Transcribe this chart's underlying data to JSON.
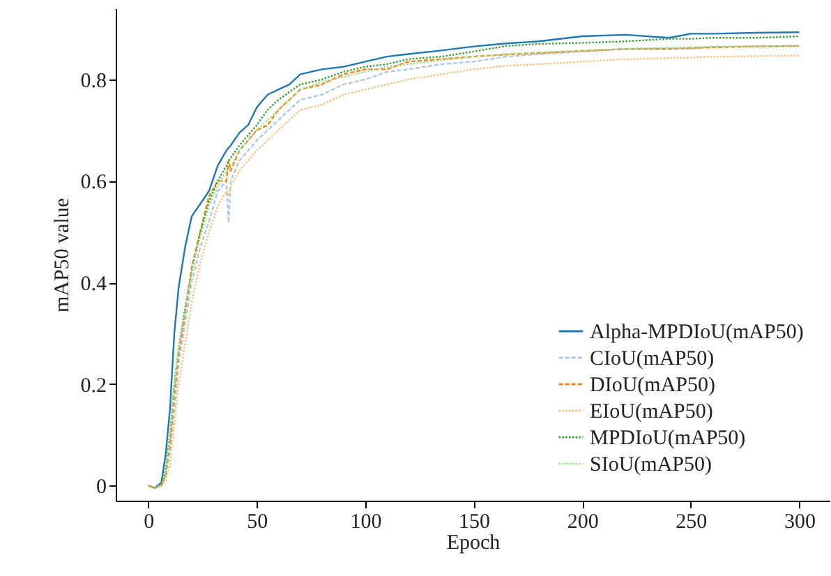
{
  "chart_data": {
    "type": "line",
    "xlabel": "Epoch",
    "ylabel": "mAP50 value",
    "legend": "bottom right",
    "grid": false,
    "xlim": [
      -15,
      314
    ],
    "xticks": [
      0,
      50,
      100,
      150,
      200,
      250,
      300
    ],
    "ylim": [
      -0.03,
      0.94
    ],
    "yticks": [
      0,
      0.2,
      0.4,
      0.6,
      0.8
    ],
    "x": [
      0,
      3,
      6,
      8,
      10,
      12,
      14,
      17,
      20,
      24,
      28,
      32,
      36,
      37,
      38,
      42,
      46,
      50,
      55,
      60,
      65,
      70,
      80,
      90,
      100,
      110,
      120,
      135,
      150,
      165,
      180,
      200,
      220,
      240,
      250,
      260,
      280,
      300
    ],
    "series": [
      {
        "name": "Alpha-MPDIoU(mAP50)",
        "color": "#1f77b4",
        "line_style": "solid",
        "values": [
          0,
          -0.005,
          0.005,
          0.06,
          0.15,
          0.3,
          0.39,
          0.47,
          0.53,
          0.555,
          0.58,
          0.63,
          0.66,
          0.665,
          0.67,
          0.695,
          0.71,
          0.745,
          0.77,
          0.78,
          0.79,
          0.81,
          0.82,
          0.825,
          0.835,
          0.845,
          0.85,
          0.857,
          0.865,
          0.871,
          0.875,
          0.885,
          0.888,
          0.882,
          0.89,
          0.89,
          0.892,
          0.893
        ]
      },
      {
        "name": "CIoU(mAP50)",
        "color": "#aec7e8",
        "line_style": "dashed",
        "values": [
          0,
          -0.005,
          0,
          0.02,
          0.07,
          0.15,
          0.24,
          0.32,
          0.4,
          0.47,
          0.52,
          0.58,
          0.6,
          0.518,
          0.6,
          0.64,
          0.66,
          0.68,
          0.7,
          0.72,
          0.74,
          0.76,
          0.77,
          0.79,
          0.8,
          0.815,
          0.82,
          0.83,
          0.835,
          0.845,
          0.85,
          0.855,
          0.86,
          0.862,
          0.86,
          0.865,
          0.865,
          0.866
        ]
      },
      {
        "name": "DIoU(mAP50)",
        "color": "#ff7f0e",
        "line_style": "dashed",
        "values": [
          0,
          -0.005,
          0,
          0.02,
          0.08,
          0.18,
          0.26,
          0.34,
          0.43,
          0.5,
          0.57,
          0.6,
          0.6,
          0.64,
          0.62,
          0.66,
          0.68,
          0.7,
          0.71,
          0.74,
          0.76,
          0.78,
          0.79,
          0.81,
          0.82,
          0.82,
          0.835,
          0.84,
          0.845,
          0.849,
          0.852,
          0.856,
          0.86,
          0.86,
          0.862,
          0.863,
          0.865,
          0.866
        ]
      },
      {
        "name": "EIoU(mAP50)",
        "color": "#ffbb78",
        "line_style": "dotted",
        "values": [
          0,
          -0.005,
          0,
          0.01,
          0.04,
          0.12,
          0.2,
          0.28,
          0.36,
          0.44,
          0.5,
          0.55,
          0.58,
          0.57,
          0.59,
          0.62,
          0.64,
          0.66,
          0.68,
          0.7,
          0.72,
          0.74,
          0.75,
          0.77,
          0.78,
          0.79,
          0.8,
          0.81,
          0.82,
          0.827,
          0.83,
          0.835,
          0.84,
          0.842,
          0.843,
          0.845,
          0.846,
          0.847
        ]
      },
      {
        "name": "MPDIoU(mAP50)",
        "color": "#2ca02c",
        "line_style": "dotted",
        "values": [
          0,
          -0.005,
          0,
          0.03,
          0.1,
          0.2,
          0.27,
          0.35,
          0.42,
          0.5,
          0.56,
          0.6,
          0.63,
          0.64,
          0.645,
          0.67,
          0.69,
          0.71,
          0.74,
          0.76,
          0.775,
          0.79,
          0.8,
          0.815,
          0.825,
          0.83,
          0.84,
          0.845,
          0.855,
          0.866,
          0.87,
          0.872,
          0.875,
          0.88,
          0.88,
          0.882,
          0.882,
          0.885
        ]
      },
      {
        "name": "SIoU(mAP50)",
        "color": "#98df8a",
        "line_style": "dotted",
        "values": [
          0,
          -0.005,
          0,
          0.02,
          0.09,
          0.19,
          0.27,
          0.34,
          0.42,
          0.49,
          0.55,
          0.59,
          0.62,
          0.62,
          0.63,
          0.66,
          0.68,
          0.7,
          0.72,
          0.74,
          0.76,
          0.78,
          0.795,
          0.805,
          0.815,
          0.825,
          0.83,
          0.838,
          0.845,
          0.85,
          0.853,
          0.857,
          0.86,
          0.862,
          0.863,
          0.864,
          0.865,
          0.866
        ]
      }
    ]
  }
}
